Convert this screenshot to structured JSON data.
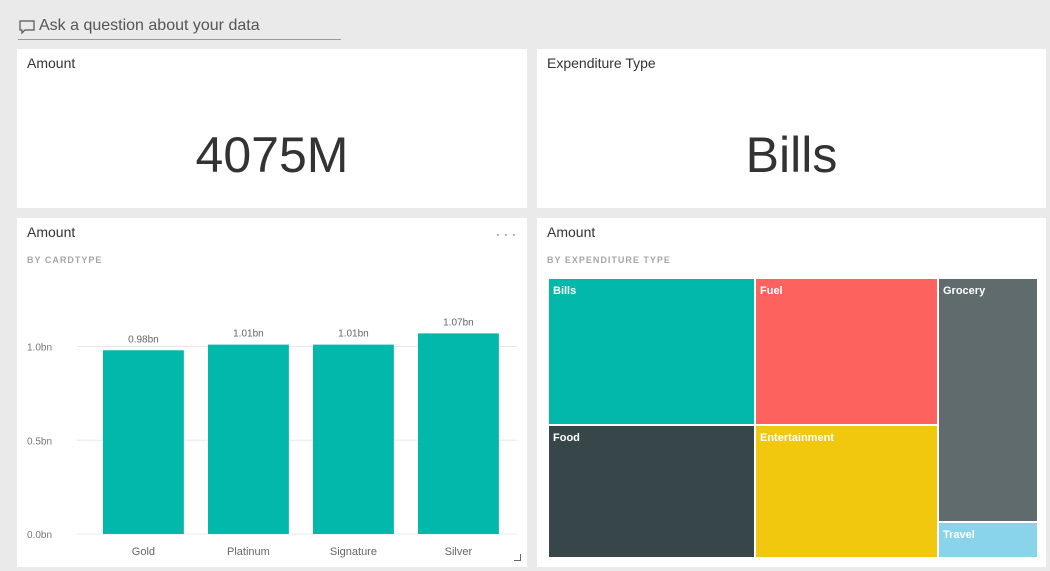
{
  "qna": {
    "placeholder": "Ask a question about your data"
  },
  "tiles": {
    "amount_card": {
      "title": "Amount",
      "value": "4075M"
    },
    "expenditure_card": {
      "title": "Expenditure Type",
      "value": "Bills"
    },
    "bar_tile": {
      "title": "Amount",
      "subtitle": "BY CARDTYPE"
    },
    "treemap_tile": {
      "title": "Amount",
      "subtitle": "BY EXPENDITURE TYPE"
    }
  },
  "colors": {
    "teal": "#01b8aa",
    "red": "#fd625e",
    "darkgray": "#374649",
    "yellow": "#f2c80f",
    "gray": "#5f6b6d",
    "lightblue": "#8ad4eb"
  },
  "chart_data": [
    {
      "type": "bar",
      "categories": [
        "Gold",
        "Platinum",
        "Signature",
        "Silver"
      ],
      "values": [
        0.98,
        1.01,
        1.01,
        1.07
      ],
      "value_labels": [
        "0.98bn",
        "1.01bn",
        "1.01bn",
        "1.07bn"
      ],
      "y_ticks": [
        0,
        0.5,
        1.0
      ],
      "y_tick_labels": [
        "0.0bn",
        "0.5bn",
        "1.0bn"
      ],
      "ylim": [
        0,
        1.2
      ],
      "color": "#01b8aa",
      "grid": true,
      "legend": "none"
    },
    {
      "type": "treemap",
      "items": [
        {
          "label": "Bills",
          "color": "#01b8aa"
        },
        {
          "label": "Fuel",
          "color": "#fd625e"
        },
        {
          "label": "Grocery",
          "color": "#5f6b6d"
        },
        {
          "label": "Food",
          "color": "#374649"
        },
        {
          "label": "Entertainment",
          "color": "#f2c80f"
        },
        {
          "label": "Travel",
          "color": "#8ad4eb"
        }
      ]
    }
  ]
}
